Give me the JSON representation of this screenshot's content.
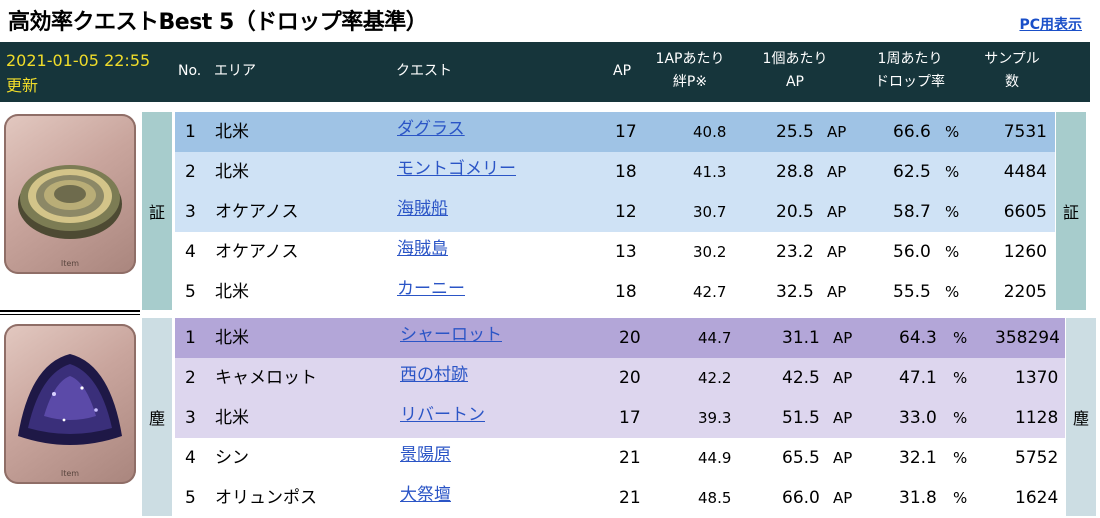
{
  "title": "高効率クエストBest 5（ドロップ率基準）",
  "pc_link": "PC用表示",
  "updated_date": "2021-01-05 22:55",
  "updated_label": "更新",
  "columns": {
    "no": "No.",
    "area": "エリア",
    "quest": "クエスト",
    "ap": "AP",
    "kizuna_line1": "1APあたり",
    "kizuna_line2": "絆P※",
    "per_item_line1": "1個あたり",
    "per_item_line2": "AP",
    "drop_line1": "1周あたり",
    "drop_line2": "ドロップ率",
    "sample_line1": "サンプル",
    "sample_line2": "数"
  },
  "colors": {
    "header_bg": "#16353b",
    "date": "#f0dc2a",
    "link": "#2b55c6",
    "proof_highlight": "#9fc3e5",
    "proof_rows": "#cfe2f5",
    "proof_stripe": "#a7cccc",
    "dust_highlight": "#b3a6d8",
    "dust_rows": "#ddd6ee",
    "dust_stripe": "#ccdde3"
  },
  "sections": [
    {
      "label": "証",
      "item_label": "Item",
      "icon": "proof-of-hero-icon",
      "rows": [
        {
          "no": "1",
          "area": "北米",
          "quest": "ダグラス",
          "ap": "17",
          "kizuna": "40.8",
          "ap_per": "25.5",
          "ap_unit": "AP",
          "drop": "66.6",
          "pct": "%",
          "samples": "7531"
        },
        {
          "no": "2",
          "area": "北米",
          "quest": "モントゴメリー",
          "ap": "18",
          "kizuna": "41.3",
          "ap_per": "28.8",
          "ap_unit": "AP",
          "drop": "62.5",
          "pct": "%",
          "samples": "4484"
        },
        {
          "no": "3",
          "area": "オケアノス",
          "quest": "海賊船",
          "ap": "12",
          "kizuna": "30.7",
          "ap_per": "20.5",
          "ap_unit": "AP",
          "drop": "58.7",
          "pct": "%",
          "samples": "6605"
        },
        {
          "no": "4",
          "area": "オケアノス",
          "quest": "海賊島",
          "ap": "13",
          "kizuna": "30.2",
          "ap_per": "23.2",
          "ap_unit": "AP",
          "drop": "56.0",
          "pct": "%",
          "samples": "1260"
        },
        {
          "no": "5",
          "area": "北米",
          "quest": "カーニー",
          "ap": "18",
          "kizuna": "42.7",
          "ap_per": "32.5",
          "ap_unit": "AP",
          "drop": "55.5",
          "pct": "%",
          "samples": "2205"
        }
      ]
    },
    {
      "label": "塵",
      "item_label": "Item",
      "icon": "void-dust-icon",
      "rows": [
        {
          "no": "1",
          "area": "北米",
          "quest": "シャーロット",
          "ap": "20",
          "kizuna": "44.7",
          "ap_per": "31.1",
          "ap_unit": "AP",
          "drop": "64.3",
          "pct": "%",
          "samples": "358294"
        },
        {
          "no": "2",
          "area": "キャメロット",
          "quest": "西の村跡",
          "ap": "20",
          "kizuna": "42.2",
          "ap_per": "42.5",
          "ap_unit": "AP",
          "drop": "47.1",
          "pct": "%",
          "samples": "1370"
        },
        {
          "no": "3",
          "area": "北米",
          "quest": "リバートン",
          "ap": "17",
          "kizuna": "39.3",
          "ap_per": "51.5",
          "ap_unit": "AP",
          "drop": "33.0",
          "pct": "%",
          "samples": "1128"
        },
        {
          "no": "4",
          "area": "シン",
          "quest": "景陽原",
          "ap": "21",
          "kizuna": "44.9",
          "ap_per": "65.5",
          "ap_unit": "AP",
          "drop": "32.1",
          "pct": "%",
          "samples": "5752"
        },
        {
          "no": "5",
          "area": "オリュンポス",
          "quest": "大祭壇",
          "ap": "21",
          "kizuna": "48.5",
          "ap_per": "66.0",
          "ap_unit": "AP",
          "drop": "31.8",
          "pct": "%",
          "samples": "1624"
        }
      ]
    }
  ]
}
